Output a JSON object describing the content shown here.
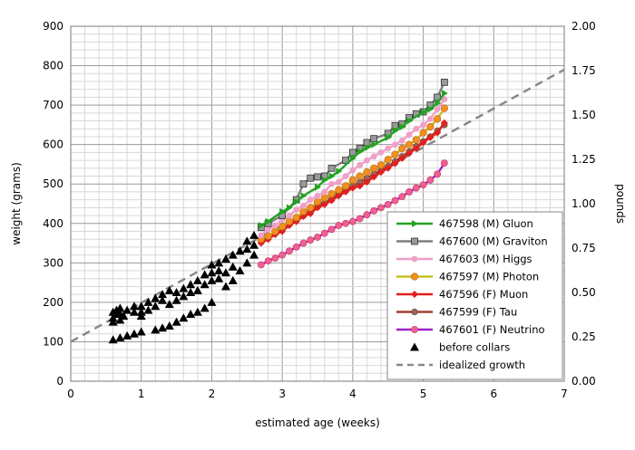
{
  "chart_data": {
    "type": "line",
    "xlabel": "estimated age (weeks)",
    "ylabel": "weight (grams)",
    "y2label": "pounds",
    "xlim": [
      0,
      7
    ],
    "ylim": [
      0,
      900
    ],
    "y2lim": [
      0,
      2.0
    ],
    "x_ticks": [
      "0",
      "1",
      "2",
      "3",
      "4",
      "5",
      "6",
      "7"
    ],
    "y_ticks": [
      "0",
      "100",
      "200",
      "300",
      "400",
      "500",
      "600",
      "700",
      "800",
      "900"
    ],
    "y2_ticks": [
      "0.00",
      "0.25",
      "0.50",
      "0.75",
      "1.00",
      "1.25",
      "1.50",
      "1.75",
      "2.00"
    ],
    "grid": true,
    "legend_position": "bottom-right",
    "series": [
      {
        "name": "467598 (M) Gluon",
        "color": "#22a322",
        "marker": "arrow",
        "x": [
          2.7,
          2.8,
          3.0,
          3.1,
          3.2,
          3.3,
          3.5,
          3.6,
          3.7,
          3.8,
          4.0,
          4.1,
          4.2,
          4.3,
          4.5,
          4.6,
          4.7,
          4.8,
          5.0,
          5.1,
          5.2,
          5.3
        ],
        "y": [
          395,
          405,
          430,
          440,
          455,
          470,
          492,
          510,
          520,
          532,
          565,
          582,
          592,
          600,
          618,
          635,
          645,
          660,
          682,
          690,
          705,
          730
        ]
      },
      {
        "name": "467600 (M) Graviton",
        "color": "#808080",
        "marker": "square",
        "x": [
          2.7,
          2.8,
          3.0,
          3.2,
          3.3,
          3.4,
          3.5,
          3.6,
          3.7,
          3.9,
          4.0,
          4.1,
          4.2,
          4.3,
          4.5,
          4.6,
          4.7,
          4.8,
          4.9,
          5.0,
          5.1,
          5.2,
          5.3
        ],
        "y": [
          390,
          400,
          420,
          460,
          500,
          515,
          518,
          520,
          540,
          560,
          580,
          590,
          605,
          615,
          628,
          648,
          652,
          668,
          678,
          683,
          700,
          720,
          758
        ]
      },
      {
        "name": "467603 (M) Higgs",
        "color": "#f0a0c8",
        "marker": "circle",
        "x": [
          2.7,
          2.8,
          2.9,
          3.0,
          3.1,
          3.2,
          3.3,
          3.4,
          3.5,
          3.6,
          3.7,
          3.8,
          3.9,
          4.0,
          4.1,
          4.2,
          4.3,
          4.4,
          4.5,
          4.6,
          4.7,
          4.8,
          4.9,
          5.0,
          5.1,
          5.2,
          5.3
        ],
        "y": [
          370,
          385,
          395,
          410,
          420,
          435,
          445,
          460,
          470,
          480,
          500,
          505,
          520,
          535,
          548,
          560,
          570,
          580,
          590,
          600,
          610,
          625,
          640,
          650,
          665,
          690,
          715
        ]
      },
      {
        "name": "467597 (M) Photon",
        "color": "#c8c020",
        "marker": "circle-orange",
        "x": [
          2.7,
          2.8,
          2.9,
          3.0,
          3.1,
          3.2,
          3.3,
          3.4,
          3.5,
          3.6,
          3.7,
          3.8,
          3.9,
          4.0,
          4.1,
          4.2,
          4.3,
          4.4,
          4.5,
          4.6,
          4.7,
          4.8,
          4.9,
          5.0,
          5.1,
          5.2,
          5.3
        ],
        "y": [
          360,
          368,
          380,
          392,
          405,
          415,
          430,
          440,
          455,
          465,
          475,
          485,
          495,
          510,
          520,
          530,
          540,
          548,
          562,
          575,
          590,
          600,
          612,
          630,
          645,
          665,
          692
        ]
      },
      {
        "name": "467596 (F) Muon",
        "color": "#e02020",
        "marker": "diamond",
        "x": [
          2.7,
          2.8,
          2.9,
          3.0,
          3.1,
          3.2,
          3.3,
          3.4,
          3.5,
          3.6,
          3.7,
          3.8,
          3.9,
          4.0,
          4.1,
          4.2,
          4.3,
          4.4,
          4.5,
          4.6,
          4.7,
          4.8,
          4.9,
          5.0,
          5.1,
          5.2,
          5.3
        ],
        "y": [
          350,
          360,
          372,
          380,
          395,
          405,
          418,
          425,
          440,
          448,
          458,
          470,
          480,
          490,
          495,
          505,
          518,
          530,
          540,
          552,
          565,
          578,
          590,
          605,
          618,
          630,
          655
        ]
      },
      {
        "name": "467599 (F) Tau",
        "color": "#a04030",
        "marker": "circle-brown",
        "x": [
          2.7,
          2.8,
          2.9,
          3.0,
          3.1,
          3.2,
          3.3,
          3.4,
          3.5,
          3.6,
          3.7,
          3.8,
          3.9,
          4.0,
          4.1,
          4.2,
          4.3,
          4.4,
          4.5,
          4.6,
          4.7,
          4.8,
          4.9,
          5.0,
          5.1,
          5.2,
          5.3
        ],
        "y": [
          355,
          362,
          375,
          385,
          398,
          408,
          420,
          430,
          442,
          452,
          462,
          475,
          485,
          495,
          505,
          515,
          525,
          535,
          545,
          557,
          570,
          582,
          595,
          608,
          620,
          635,
          650
        ]
      },
      {
        "name": "467601 (F) Neutrino",
        "color": "#a020c8",
        "marker": "circle-pink",
        "x": [
          2.7,
          2.8,
          2.9,
          3.0,
          3.1,
          3.2,
          3.3,
          3.4,
          3.5,
          3.6,
          3.7,
          3.8,
          3.9,
          4.0,
          4.1,
          4.2,
          4.3,
          4.4,
          4.5,
          4.6,
          4.7,
          4.8,
          4.9,
          5.0,
          5.1,
          5.2,
          5.3
        ],
        "y": [
          295,
          305,
          312,
          320,
          330,
          340,
          350,
          358,
          365,
          375,
          385,
          395,
          400,
          405,
          412,
          422,
          432,
          440,
          448,
          458,
          468,
          480,
          490,
          498,
          510,
          525,
          553
        ]
      },
      {
        "name": "before collars",
        "color": "#000000",
        "marker": "triangle",
        "x": [
          0.6,
          0.6,
          0.6,
          0.6,
          0.65,
          0.65,
          0.7,
          0.7,
          0.7,
          0.7,
          0.75,
          0.8,
          0.8,
          0.9,
          0.9,
          0.9,
          1.0,
          1.0,
          1.0,
          1.0,
          1.1,
          1.1,
          1.2,
          1.2,
          1.2,
          1.3,
          1.3,
          1.3,
          1.4,
          1.4,
          1.4,
          1.5,
          1.5,
          1.5,
          1.6,
          1.6,
          1.6,
          1.7,
          1.7,
          1.7,
          1.8,
          1.8,
          1.8,
          1.9,
          1.9,
          1.9,
          2.0,
          2.0,
          2.0,
          2.0,
          2.1,
          2.1,
          2.1,
          2.2,
          2.2,
          2.2,
          2.3,
          2.3,
          2.3,
          2.4,
          2.4,
          2.5,
          2.5,
          2.5,
          2.6,
          2.6,
          2.6
        ],
        "y": [
          105,
          150,
          160,
          175,
          170,
          180,
          110,
          155,
          170,
          185,
          165,
          115,
          180,
          120,
          175,
          190,
          125,
          165,
          175,
          190,
          180,
          200,
          130,
          190,
          210,
          135,
          205,
          220,
          140,
          195,
          230,
          150,
          205,
          225,
          160,
          215,
          235,
          170,
          225,
          245,
          175,
          230,
          255,
          185,
          245,
          270,
          200,
          255,
          275,
          295,
          260,
          280,
          300,
          240,
          275,
          310,
          255,
          290,
          320,
          280,
          330,
          300,
          335,
          355,
          320,
          345,
          370
        ]
      }
    ],
    "reference_line": {
      "name": "idealized growth",
      "color": "#888888",
      "style": "dashed",
      "x": [
        0,
        7
      ],
      "y": [
        100,
        790
      ]
    }
  }
}
